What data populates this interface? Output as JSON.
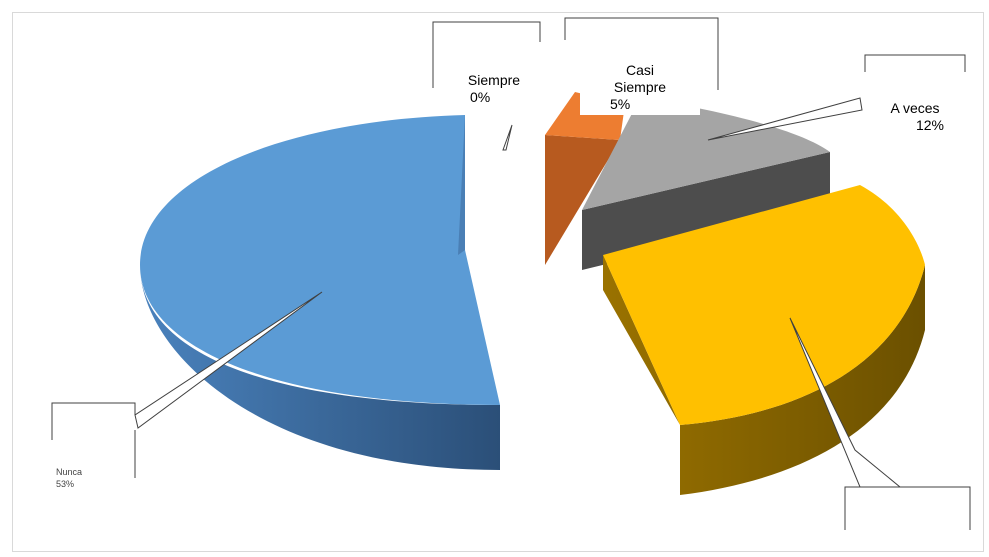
{
  "chart_data": {
    "type": "pie",
    "style": "3d-exploded",
    "slices": [
      {
        "label": "Nunca",
        "value": 53,
        "percent_label": "53%",
        "color": "#5B9BD5"
      },
      {
        "label": "Siempre",
        "value": 0,
        "percent_label": "0%",
        "color": "#5B9BD5"
      },
      {
        "label": "Casi Siempre",
        "value": 5,
        "percent_label": "5%",
        "color": "#ED7D31"
      },
      {
        "label": "A veces",
        "value": 12,
        "percent_label": "12%",
        "color": "#A5A5A5"
      },
      {
        "label": "",
        "value": 30,
        "percent_label": "",
        "color": "#FFC000"
      }
    ],
    "title": "",
    "legend": "none"
  },
  "labels": {
    "siempre": {
      "name": "Siempre",
      "pct": "0%"
    },
    "casi": {
      "name_line1": "Casi",
      "name_line2": "Siempre",
      "pct": "5%"
    },
    "aveces": {
      "name": "A veces",
      "pct": "12%"
    },
    "nunca": {
      "name": "Nunca",
      "pct": "53%"
    }
  }
}
